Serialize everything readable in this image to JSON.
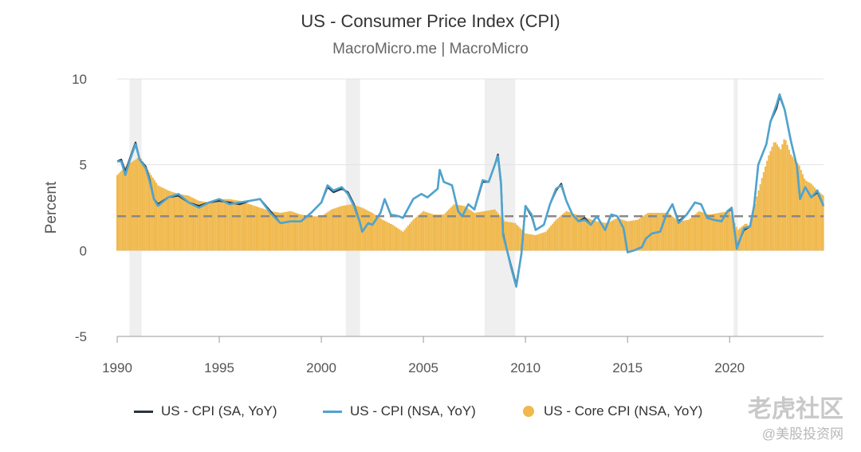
{
  "chart_data": {
    "type": "line",
    "title": "US - Consumer Price Index (CPI)",
    "subtitle": "MacroMicro.me | MacroMicro",
    "ylabel": "Percent",
    "ylim": [
      -5,
      10
    ],
    "xlim": [
      1990,
      2024.6
    ],
    "yticks": [
      10,
      5,
      0,
      -5
    ],
    "xticks": [
      1990,
      1995,
      2000,
      2005,
      2010,
      2015,
      2020
    ],
    "reference_line": 2,
    "recessions": [
      [
        1990.6,
        1991.2
      ],
      [
        2001.2,
        2001.9
      ],
      [
        2008.0,
        2009.5
      ],
      [
        2020.2,
        2020.4
      ]
    ],
    "series": [
      {
        "name": "US - CPI (SA, YoY)",
        "style": "line",
        "color": "#2b3442",
        "points": [
          [
            1990.0,
            5.2
          ],
          [
            1990.2,
            5.3
          ],
          [
            1990.4,
            4.6
          ],
          [
            1990.6,
            5.3
          ],
          [
            1990.9,
            6.3
          ],
          [
            1991.1,
            5.3
          ],
          [
            1991.4,
            4.9
          ],
          [
            1991.6,
            4.1
          ],
          [
            1991.8,
            3.0
          ],
          [
            1992.0,
            2.7
          ],
          [
            1992.5,
            3.1
          ],
          [
            1993.0,
            3.2
          ],
          [
            1993.5,
            2.8
          ],
          [
            1994.0,
            2.6
          ],
          [
            1994.5,
            2.8
          ],
          [
            1995.0,
            2.9
          ],
          [
            1995.5,
            2.8
          ],
          [
            1996.0,
            2.7
          ],
          [
            1996.5,
            2.9
          ],
          [
            1997.0,
            3.0
          ],
          [
            1997.5,
            2.3
          ],
          [
            1998.0,
            1.6
          ],
          [
            1998.5,
            1.7
          ],
          [
            1999.0,
            1.7
          ],
          [
            1999.5,
            2.2
          ],
          [
            2000.0,
            2.8
          ],
          [
            2000.3,
            3.7
          ],
          [
            2000.6,
            3.4
          ],
          [
            2001.0,
            3.6
          ],
          [
            2001.3,
            3.4
          ],
          [
            2001.6,
            2.7
          ],
          [
            2001.9,
            1.6
          ],
          [
            2002.0,
            1.1
          ],
          [
            2002.3,
            1.6
          ],
          [
            2002.5,
            1.5
          ],
          [
            2002.9,
            2.2
          ],
          [
            2003.1,
            3.0
          ],
          [
            2003.4,
            2.1
          ],
          [
            2003.8,
            2.0
          ],
          [
            2004.0,
            1.9
          ],
          [
            2004.5,
            3.0
          ],
          [
            2004.9,
            3.3
          ],
          [
            2005.2,
            3.1
          ],
          [
            2005.7,
            3.6
          ],
          [
            2005.8,
            4.7
          ],
          [
            2006.0,
            4.0
          ],
          [
            2006.4,
            3.8
          ],
          [
            2006.7,
            2.3
          ],
          [
            2006.9,
            2.0
          ],
          [
            2007.2,
            2.7
          ],
          [
            2007.5,
            2.4
          ],
          [
            2007.9,
            4.0
          ],
          [
            2008.2,
            4.0
          ],
          [
            2008.5,
            5.0
          ],
          [
            2008.65,
            5.6
          ],
          [
            2008.8,
            4.0
          ],
          [
            2008.9,
            1.0
          ],
          [
            2009.1,
            0.0
          ],
          [
            2009.3,
            -0.9
          ],
          [
            2009.55,
            -2.0
          ],
          [
            2009.8,
            -0.2
          ],
          [
            2010.0,
            2.6
          ],
          [
            2010.3,
            2.0
          ],
          [
            2010.5,
            1.2
          ],
          [
            2010.9,
            1.5
          ],
          [
            2011.2,
            2.7
          ],
          [
            2011.5,
            3.5
          ],
          [
            2011.75,
            3.9
          ],
          [
            2012.0,
            2.9
          ],
          [
            2012.3,
            2.1
          ],
          [
            2012.6,
            1.7
          ],
          [
            2012.9,
            1.9
          ],
          [
            2013.2,
            1.5
          ],
          [
            2013.5,
            2.0
          ],
          [
            2013.9,
            1.2
          ],
          [
            2014.2,
            2.1
          ],
          [
            2014.5,
            2.0
          ],
          [
            2014.8,
            1.3
          ],
          [
            2015.0,
            -0.1
          ],
          [
            2015.3,
            0.0
          ],
          [
            2015.7,
            0.2
          ],
          [
            2015.9,
            0.7
          ],
          [
            2016.2,
            1.0
          ],
          [
            2016.6,
            1.1
          ],
          [
            2016.9,
            2.1
          ],
          [
            2017.2,
            2.7
          ],
          [
            2017.5,
            1.7
          ],
          [
            2017.9,
            2.1
          ],
          [
            2018.3,
            2.8
          ],
          [
            2018.6,
            2.7
          ],
          [
            2018.9,
            1.9
          ],
          [
            2019.2,
            1.8
          ],
          [
            2019.6,
            1.7
          ],
          [
            2019.9,
            2.3
          ],
          [
            2020.1,
            2.4
          ],
          [
            2020.35,
            0.2
          ],
          [
            2020.7,
            1.2
          ],
          [
            2021.0,
            1.4
          ],
          [
            2021.2,
            2.6
          ],
          [
            2021.4,
            5.0
          ],
          [
            2021.8,
            6.2
          ],
          [
            2022.0,
            7.5
          ],
          [
            2022.3,
            8.3
          ],
          [
            2022.45,
            9.0
          ],
          [
            2022.7,
            8.2
          ],
          [
            2023.0,
            6.4
          ],
          [
            2023.3,
            4.9
          ],
          [
            2023.45,
            3.0
          ],
          [
            2023.7,
            3.7
          ],
          [
            2024.0,
            3.1
          ],
          [
            2024.3,
            3.4
          ],
          [
            2024.6,
            2.6
          ]
        ]
      },
      {
        "name": "US - CPI (NSA, YoY)",
        "style": "line",
        "color": "#4fa3cf",
        "points": [
          [
            1990.0,
            5.2
          ],
          [
            1990.2,
            5.2
          ],
          [
            1990.4,
            4.4
          ],
          [
            1990.6,
            5.2
          ],
          [
            1990.9,
            6.2
          ],
          [
            1991.1,
            5.3
          ],
          [
            1991.4,
            4.8
          ],
          [
            1991.6,
            4.0
          ],
          [
            1991.8,
            3.0
          ],
          [
            1992.0,
            2.6
          ],
          [
            1992.5,
            3.1
          ],
          [
            1993.0,
            3.3
          ],
          [
            1993.5,
            2.8
          ],
          [
            1994.0,
            2.5
          ],
          [
            1994.5,
            2.8
          ],
          [
            1995.0,
            3.0
          ],
          [
            1995.5,
            2.7
          ],
          [
            1996.0,
            2.8
          ],
          [
            1996.5,
            2.9
          ],
          [
            1997.0,
            3.0
          ],
          [
            1997.5,
            2.2
          ],
          [
            1998.0,
            1.6
          ],
          [
            1998.5,
            1.7
          ],
          [
            1999.0,
            1.7
          ],
          [
            1999.5,
            2.2
          ],
          [
            2000.0,
            2.8
          ],
          [
            2000.3,
            3.8
          ],
          [
            2000.6,
            3.5
          ],
          [
            2001.0,
            3.7
          ],
          [
            2001.3,
            3.3
          ],
          [
            2001.6,
            2.6
          ],
          [
            2001.9,
            1.6
          ],
          [
            2002.0,
            1.1
          ],
          [
            2002.3,
            1.6
          ],
          [
            2002.5,
            1.5
          ],
          [
            2002.9,
            2.2
          ],
          [
            2003.1,
            3.0
          ],
          [
            2003.4,
            2.1
          ],
          [
            2003.8,
            2.0
          ],
          [
            2004.0,
            1.9
          ],
          [
            2004.5,
            3.0
          ],
          [
            2004.9,
            3.3
          ],
          [
            2005.2,
            3.1
          ],
          [
            2005.7,
            3.6
          ],
          [
            2005.8,
            4.7
          ],
          [
            2006.0,
            4.0
          ],
          [
            2006.4,
            3.8
          ],
          [
            2006.7,
            2.3
          ],
          [
            2006.9,
            2.0
          ],
          [
            2007.2,
            2.7
          ],
          [
            2007.5,
            2.4
          ],
          [
            2007.9,
            4.1
          ],
          [
            2008.2,
            4.0
          ],
          [
            2008.5,
            5.0
          ],
          [
            2008.65,
            5.5
          ],
          [
            2008.8,
            3.9
          ],
          [
            2008.9,
            0.9
          ],
          [
            2009.1,
            0.0
          ],
          [
            2009.3,
            -1.0
          ],
          [
            2009.55,
            -2.1
          ],
          [
            2009.8,
            -0.2
          ],
          [
            2010.0,
            2.6
          ],
          [
            2010.3,
            2.1
          ],
          [
            2010.5,
            1.2
          ],
          [
            2010.9,
            1.5
          ],
          [
            2011.2,
            2.7
          ],
          [
            2011.5,
            3.6
          ],
          [
            2011.75,
            3.8
          ],
          [
            2012.0,
            2.9
          ],
          [
            2012.3,
            2.1
          ],
          [
            2012.6,
            1.7
          ],
          [
            2012.9,
            1.8
          ],
          [
            2013.2,
            1.5
          ],
          [
            2013.5,
            2.0
          ],
          [
            2013.9,
            1.2
          ],
          [
            2014.2,
            2.1
          ],
          [
            2014.5,
            2.0
          ],
          [
            2014.8,
            1.3
          ],
          [
            2015.0,
            -0.1
          ],
          [
            2015.3,
            0.0
          ],
          [
            2015.7,
            0.2
          ],
          [
            2015.9,
            0.7
          ],
          [
            2016.2,
            1.0
          ],
          [
            2016.6,
            1.1
          ],
          [
            2016.9,
            2.1
          ],
          [
            2017.2,
            2.7
          ],
          [
            2017.5,
            1.6
          ],
          [
            2017.9,
            2.1
          ],
          [
            2018.3,
            2.8
          ],
          [
            2018.6,
            2.7
          ],
          [
            2018.9,
            1.9
          ],
          [
            2019.2,
            1.8
          ],
          [
            2019.6,
            1.7
          ],
          [
            2019.9,
            2.3
          ],
          [
            2020.1,
            2.5
          ],
          [
            2020.35,
            0.1
          ],
          [
            2020.7,
            1.3
          ],
          [
            2021.0,
            1.4
          ],
          [
            2021.2,
            2.6
          ],
          [
            2021.4,
            5.0
          ],
          [
            2021.8,
            6.2
          ],
          [
            2022.0,
            7.5
          ],
          [
            2022.3,
            8.5
          ],
          [
            2022.45,
            9.1
          ],
          [
            2022.7,
            8.2
          ],
          [
            2023.0,
            6.4
          ],
          [
            2023.3,
            4.9
          ],
          [
            2023.45,
            3.0
          ],
          [
            2023.7,
            3.7
          ],
          [
            2024.0,
            3.1
          ],
          [
            2024.3,
            3.5
          ],
          [
            2024.6,
            2.6
          ]
        ]
      },
      {
        "name": "US - Core CPI (NSA, YoY)",
        "style": "bar",
        "color": "#f0b94e",
        "points": [
          [
            1990.0,
            4.4
          ],
          [
            1990.5,
            5.0
          ],
          [
            1990.9,
            5.3
          ],
          [
            1991.1,
            5.5
          ],
          [
            1991.5,
            4.7
          ],
          [
            1992.0,
            3.8
          ],
          [
            1992.5,
            3.5
          ],
          [
            1993.0,
            3.3
          ],
          [
            1993.5,
            3.2
          ],
          [
            1994.0,
            2.9
          ],
          [
            1994.5,
            2.8
          ],
          [
            1995.0,
            3.0
          ],
          [
            1995.5,
            3.0
          ],
          [
            1996.0,
            2.9
          ],
          [
            1996.5,
            2.7
          ],
          [
            1997.0,
            2.5
          ],
          [
            1997.5,
            2.3
          ],
          [
            1998.0,
            2.2
          ],
          [
            1998.5,
            2.3
          ],
          [
            1999.0,
            2.1
          ],
          [
            1999.5,
            2.0
          ],
          [
            2000.0,
            2.0
          ],
          [
            2000.5,
            2.4
          ],
          [
            2001.0,
            2.6
          ],
          [
            2001.5,
            2.7
          ],
          [
            2002.0,
            2.5
          ],
          [
            2002.5,
            2.2
          ],
          [
            2003.0,
            1.8
          ],
          [
            2003.5,
            1.5
          ],
          [
            2004.0,
            1.1
          ],
          [
            2004.5,
            1.8
          ],
          [
            2005.0,
            2.3
          ],
          [
            2005.5,
            2.1
          ],
          [
            2006.0,
            2.1
          ],
          [
            2006.5,
            2.7
          ],
          [
            2007.0,
            2.6
          ],
          [
            2007.5,
            2.2
          ],
          [
            2008.0,
            2.3
          ],
          [
            2008.5,
            2.4
          ],
          [
            2009.0,
            1.7
          ],
          [
            2009.5,
            1.6
          ],
          [
            2010.0,
            1.0
          ],
          [
            2010.5,
            0.9
          ],
          [
            2011.0,
            1.1
          ],
          [
            2011.5,
            1.8
          ],
          [
            2012.0,
            2.3
          ],
          [
            2012.5,
            2.1
          ],
          [
            2013.0,
            1.9
          ],
          [
            2013.5,
            1.7
          ],
          [
            2014.0,
            1.6
          ],
          [
            2014.5,
            1.9
          ],
          [
            2015.0,
            1.7
          ],
          [
            2015.5,
            1.8
          ],
          [
            2016.0,
            2.2
          ],
          [
            2016.5,
            2.2
          ],
          [
            2017.0,
            2.2
          ],
          [
            2017.5,
            1.7
          ],
          [
            2018.0,
            1.8
          ],
          [
            2018.5,
            2.3
          ],
          [
            2019.0,
            2.1
          ],
          [
            2019.5,
            2.2
          ],
          [
            2020.0,
            2.3
          ],
          [
            2020.4,
            1.2
          ],
          [
            2020.8,
            1.6
          ],
          [
            2021.0,
            1.4
          ],
          [
            2021.3,
            3.0
          ],
          [
            2021.6,
            4.3
          ],
          [
            2021.9,
            5.5
          ],
          [
            2022.2,
            6.4
          ],
          [
            2022.5,
            5.9
          ],
          [
            2022.7,
            6.6
          ],
          [
            2023.0,
            5.6
          ],
          [
            2023.4,
            5.0
          ],
          [
            2023.7,
            4.1
          ],
          [
            2024.0,
            3.9
          ],
          [
            2024.3,
            3.5
          ],
          [
            2024.6,
            3.2
          ]
        ]
      }
    ],
    "legend_position": "bottom"
  },
  "watermark": {
    "main": "老虎社区",
    "sub": "@美股投资网"
  }
}
